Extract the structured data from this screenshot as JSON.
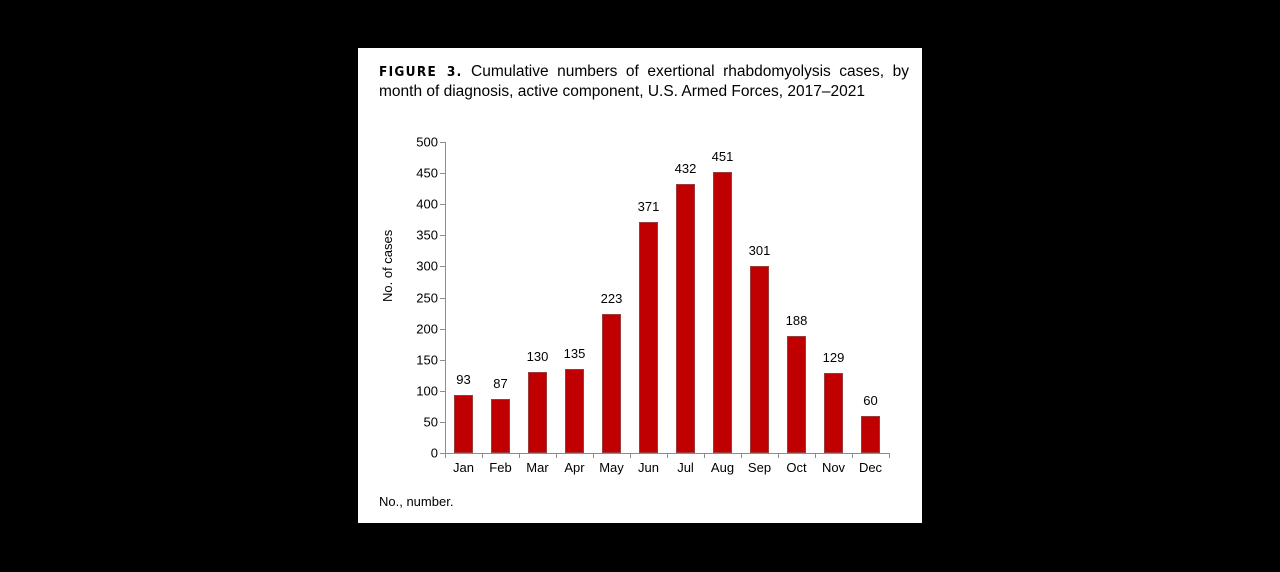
{
  "figure": {
    "label": "FIGURE 3.",
    "title": "Cumulative numbers of exertional rhabdomyolysis cases, by month of diagnosis, active component, U.S. Armed Forces, 2017–2021",
    "footnote": "No., number."
  },
  "colors": {
    "background": "#000000",
    "panel": "#ffffff",
    "bar": "#c00000",
    "axis": "#8c8c8c"
  },
  "chart_data": {
    "type": "bar",
    "title": "FIGURE 3. Cumulative numbers of exertional rhabdomyolysis cases, by month of diagnosis, active component, U.S. Armed Forces, 2017–2021",
    "xlabel": "",
    "ylabel": "No. of cases",
    "categories": [
      "Jan",
      "Feb",
      "Mar",
      "Apr",
      "May",
      "Jun",
      "Jul",
      "Aug",
      "Sep",
      "Oct",
      "Nov",
      "Dec"
    ],
    "values": [
      93,
      87,
      130,
      135,
      223,
      371,
      432,
      451,
      301,
      188,
      129,
      60
    ],
    "ylim": [
      0,
      500
    ],
    "yticks": [
      0,
      50,
      100,
      150,
      200,
      250,
      300,
      350,
      400,
      450,
      500
    ],
    "grid": false,
    "legend": null,
    "data_labels": true
  }
}
